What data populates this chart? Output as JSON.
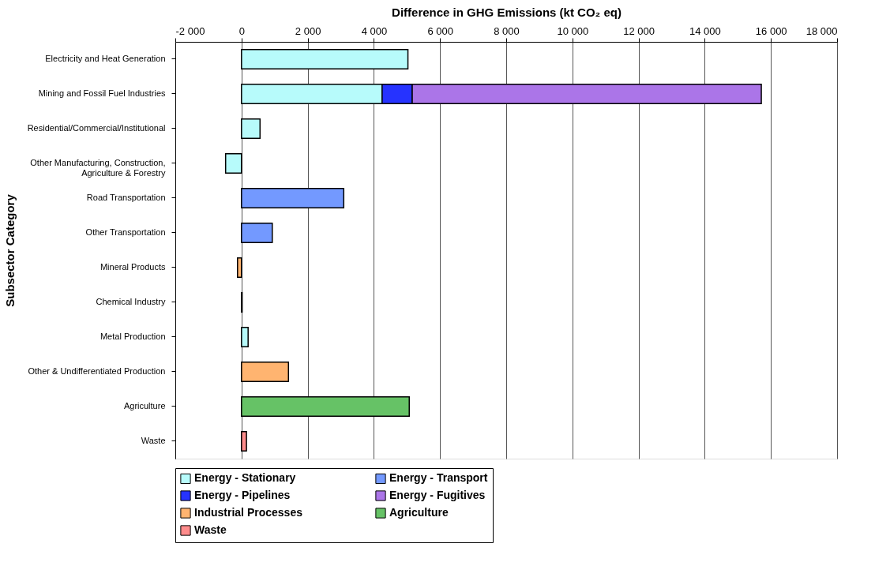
{
  "chart_data": {
    "type": "bar",
    "orientation": "horizontal",
    "stacked": true,
    "xlabel": "Difference in GHG Emissions (kt CO₂ eq)",
    "ylabel": "Subsector Category",
    "categories": [
      "Electricity and Heat Generation",
      "Mining and Fossil Fuel Industries",
      "Residential/Commercial/Institutional",
      "Other Manufacturing, Construction, Agriculture & Forestry",
      "Road Transportation",
      "Other Transportation",
      "Mineral Products",
      "Chemical Industry",
      "Metal Production",
      "Other & Undifferentiated Production",
      "Agriculture",
      "Waste"
    ],
    "series": [
      {
        "name": "Energy - Stationary",
        "color": "#b7fbfb",
        "values": [
          5030,
          4250,
          560,
          -480,
          null,
          null,
          null,
          null,
          200,
          null,
          null,
          null
        ]
      },
      {
        "name": "Energy - Transport",
        "color": "#7399ff",
        "values": [
          null,
          null,
          null,
          null,
          3090,
          930,
          null,
          null,
          null,
          null,
          null,
          null
        ]
      },
      {
        "name": "Energy - Pipelines",
        "color": "#2633ff",
        "values": [
          null,
          910,
          null,
          null,
          null,
          null,
          null,
          null,
          null,
          null,
          null,
          null
        ]
      },
      {
        "name": "Energy - Fugitives",
        "color": "#ab75e8",
        "values": [
          null,
          10550,
          null,
          null,
          null,
          null,
          null,
          null,
          null,
          null,
          null,
          null
        ]
      },
      {
        "name": "Industrial Processes",
        "color": "#ffb470",
        "values": [
          null,
          null,
          null,
          null,
          null,
          null,
          -120,
          20,
          null,
          1420,
          null,
          null
        ]
      },
      {
        "name": "Agriculture",
        "color": "#66c266",
        "values": [
          null,
          null,
          null,
          null,
          null,
          null,
          null,
          null,
          null,
          null,
          5070,
          null
        ]
      },
      {
        "name": "Waste",
        "color": "#ff8c8c",
        "values": [
          null,
          null,
          null,
          null,
          null,
          null,
          null,
          null,
          null,
          null,
          null,
          150
        ]
      }
    ],
    "xlim": [
      -2000,
      18000
    ],
    "xticks": [
      {
        "value": -2000,
        "label": "-2 000"
      },
      0,
      {
        "value": 2000,
        "label": "2 000"
      },
      {
        "value": 4000,
        "label": "4 000"
      },
      {
        "value": 6000,
        "label": "6 000"
      },
      {
        "value": 8000,
        "label": "8 000"
      },
      {
        "value": 10000,
        "label": "10 000"
      },
      {
        "value": 12000,
        "label": "12 000"
      },
      {
        "value": 14000,
        "label": "14 000"
      },
      {
        "value": 16000,
        "label": "16 000"
      },
      {
        "value": 18000,
        "label": "18 000"
      }
    ],
    "grid": "x",
    "legend": "bottom"
  }
}
